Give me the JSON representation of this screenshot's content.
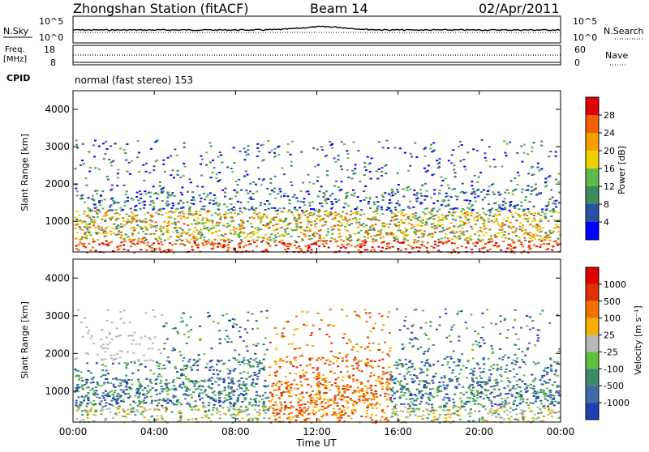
{
  "header": {
    "station": "Zhongshan Station (fitACF)",
    "beam": "Beam 14",
    "date": "02/Apr/2011"
  },
  "noise_panel": {
    "left_label": "N.Sky",
    "right_label": "N.Search",
    "left_ticks": [
      "10^5",
      "10^0"
    ],
    "right_ticks": [
      "10^5",
      "10^0"
    ]
  },
  "freq_panel": {
    "left_label_1": "Freq.",
    "left_label_2": "[MHz]",
    "right_label": "Nave",
    "left_ticks": [
      "18",
      "8"
    ],
    "right_ticks": [
      "60",
      "0"
    ]
  },
  "cpid": {
    "label": "CPID",
    "text": "normal (fast stereo) 153"
  },
  "x_axis": {
    "label": "Time UT",
    "ticks": [
      "00:00",
      "04:00",
      "08:00",
      "12:00",
      "16:00",
      "20:00",
      "00:00"
    ]
  },
  "power_panel": {
    "ylabel": "Slant Range [km]",
    "yticks": [
      "4000",
      "3000",
      "2000",
      "1000"
    ],
    "colorbar_label": "Power [dB]",
    "colorbar_ticks": [
      "28",
      "24",
      "20",
      "16",
      "12",
      "8",
      "4"
    ],
    "colors": [
      "#0000ff",
      "#2a4fa8",
      "#3d8a62",
      "#5fb84a",
      "#f0d000",
      "#f5a000",
      "#f06000",
      "#e00000"
    ]
  },
  "velocity_panel": {
    "ylabel": "Slant Range [km]",
    "yticks": [
      "4000",
      "3000",
      "2000",
      "1000"
    ],
    "colorbar_label": "Velocity [m s⁻¹]",
    "colorbar_ticks": [
      "1000",
      "500",
      "100",
      "25",
      "-25",
      "-100",
      "-500",
      "-1000"
    ],
    "colors": [
      "#2040b0",
      "#3f6aa8",
      "#3f8a6a",
      "#5fbf3f",
      "#b8b8b8",
      "#f5b000",
      "#f07000",
      "#e03000",
      "#e00000"
    ]
  },
  "chart_data": {
    "type": "heatmap",
    "x": [
      "00:00",
      "04:00",
      "08:00",
      "12:00",
      "16:00",
      "20:00",
      "00:00"
    ],
    "xlabel": "Time UT",
    "ylabel": "Slant Range [km]",
    "ylim": [
      180,
      4500
    ],
    "panels": [
      "Power [dB]",
      "Velocity [m s⁻¹]"
    ]
  }
}
